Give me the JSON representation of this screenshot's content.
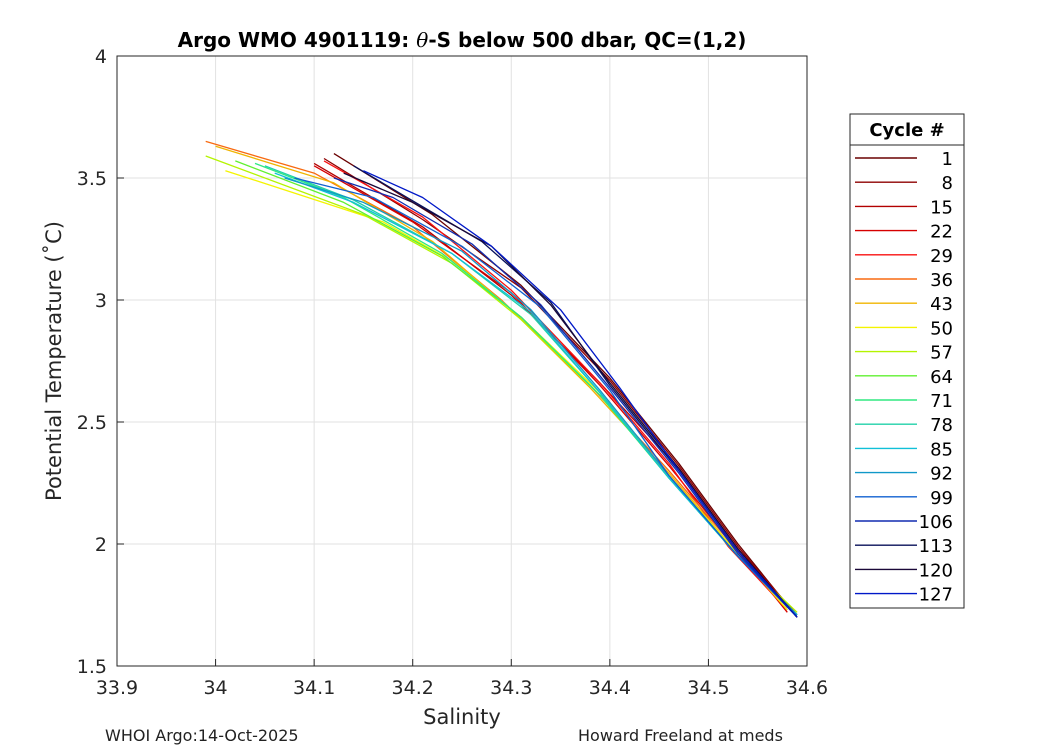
{
  "chart_data": {
    "type": "line",
    "title": "Argo WMO 4901119: θ-S below 500 dbar,  QC=(1,2)",
    "title_prefix": "Argo WMO 4901119: ",
    "title_theta": "θ",
    "title_suffix": "-S below 500 dbar,  QC=(1,2)",
    "xlabel": "Salinity",
    "ylabel": "Potential Temperature (˚C)",
    "xlim": [
      33.9,
      34.6
    ],
    "ylim": [
      1.5,
      4
    ],
    "xticks": [
      "33.9",
      "34",
      "34.1",
      "34.2",
      "34.3",
      "34.4",
      "34.5",
      "34.6"
    ],
    "yticks": [
      "1.5",
      "2",
      "2.5",
      "3",
      "3.5",
      "4"
    ],
    "grid": true,
    "legend_title": "Cycle #",
    "legend_position": "right",
    "legend": [
      {
        "name": "1",
        "color": "#6a0000"
      },
      {
        "name": "8",
        "color": "#8e0000"
      },
      {
        "name": "15",
        "color": "#b20000"
      },
      {
        "name": "22",
        "color": "#d60000"
      },
      {
        "name": "29",
        "color": "#f81010"
      },
      {
        "name": "36",
        "color": "#f86a10"
      },
      {
        "name": "43",
        "color": "#f0b400"
      },
      {
        "name": "50",
        "color": "#f4f400"
      },
      {
        "name": "57",
        "color": "#b4f400"
      },
      {
        "name": "64",
        "color": "#60f030"
      },
      {
        "name": "71",
        "color": "#30e880"
      },
      {
        "name": "78",
        "color": "#20d0a8"
      },
      {
        "name": "85",
        "color": "#10c0d8"
      },
      {
        "name": "92",
        "color": "#1098c8"
      },
      {
        "name": "99",
        "color": "#1060d0"
      },
      {
        "name": "106",
        "color": "#102cb0"
      },
      {
        "name": "113",
        "color": "#08105a"
      },
      {
        "name": "120",
        "color": "#1a0838"
      },
      {
        "name": "127",
        "color": "#0018c8"
      }
    ],
    "series": [
      {
        "color": "#6a0000",
        "x": [
          34.12,
          34.22,
          34.31,
          34.4,
          34.47,
          34.53,
          34.59
        ],
        "y": [
          3.6,
          3.35,
          3.06,
          2.68,
          2.33,
          2.0,
          1.7
        ]
      },
      {
        "color": "#8e0000",
        "x": [
          34.11,
          34.21,
          34.31,
          34.4,
          34.47,
          34.53,
          34.59
        ],
        "y": [
          3.58,
          3.33,
          3.05,
          2.67,
          2.32,
          1.99,
          1.7
        ]
      },
      {
        "color": "#b20000",
        "x": [
          34.1,
          34.21,
          34.3,
          34.39,
          34.47,
          34.53,
          34.59
        ],
        "y": [
          3.56,
          3.3,
          3.02,
          2.66,
          2.31,
          1.98,
          1.71
        ]
      },
      {
        "color": "#d60000",
        "x": [
          34.1,
          34.2,
          34.3,
          34.39,
          34.46,
          34.53,
          34.58
        ],
        "y": [
          3.55,
          3.32,
          3.03,
          2.65,
          2.32,
          1.97,
          1.72
        ]
      },
      {
        "color": "#f81010",
        "x": [
          34.11,
          34.21,
          34.3,
          34.39,
          34.46,
          34.52,
          34.58
        ],
        "y": [
          3.57,
          3.34,
          3.04,
          2.66,
          2.33,
          1.99,
          1.73
        ]
      },
      {
        "color": "#f86a10",
        "x": [
          33.99,
          34.1,
          34.2,
          34.29,
          34.38,
          34.46,
          34.53,
          34.58
        ],
        "y": [
          3.65,
          3.52,
          3.3,
          3.0,
          2.65,
          2.3,
          1.97,
          1.74
        ]
      },
      {
        "color": "#f0b400",
        "x": [
          34.0,
          34.12,
          34.22,
          34.3,
          34.38,
          34.46,
          34.53,
          34.58
        ],
        "y": [
          3.63,
          3.48,
          3.24,
          2.96,
          2.64,
          2.29,
          1.96,
          1.74
        ]
      },
      {
        "color": "#f4f400",
        "x": [
          34.01,
          34.17,
          34.24,
          34.31,
          34.39,
          34.46,
          34.53,
          34.58
        ],
        "y": [
          3.53,
          3.32,
          3.16,
          2.93,
          2.62,
          2.28,
          1.96,
          1.73
        ]
      },
      {
        "color": "#b4f400",
        "x": [
          33.99,
          34.15,
          34.24,
          34.31,
          34.39,
          34.46,
          34.53,
          34.59
        ],
        "y": [
          3.59,
          3.35,
          3.15,
          2.92,
          2.61,
          2.28,
          1.95,
          1.72
        ]
      },
      {
        "color": "#60f030",
        "x": [
          34.02,
          34.13,
          34.23,
          34.31,
          34.39,
          34.46,
          34.53,
          34.59
        ],
        "y": [
          3.57,
          3.4,
          3.18,
          2.93,
          2.61,
          2.27,
          1.95,
          1.71
        ]
      },
      {
        "color": "#30e880",
        "x": [
          34.04,
          34.13,
          34.23,
          34.31,
          34.39,
          34.46,
          34.53,
          34.59
        ],
        "y": [
          3.56,
          3.42,
          3.19,
          2.93,
          2.61,
          2.27,
          1.95,
          1.71
        ]
      },
      {
        "color": "#20d0a8",
        "x": [
          34.05,
          34.14,
          34.24,
          34.32,
          34.39,
          34.46,
          34.53,
          34.59
        ],
        "y": [
          3.55,
          3.41,
          3.19,
          2.94,
          2.62,
          2.27,
          1.95,
          1.71
        ]
      },
      {
        "color": "#10c0d8",
        "x": [
          34.06,
          34.14,
          34.24,
          34.32,
          34.39,
          34.46,
          34.53,
          34.59
        ],
        "y": [
          3.52,
          3.4,
          3.19,
          2.95,
          2.62,
          2.27,
          1.95,
          1.71
        ]
      },
      {
        "color": "#1098c8",
        "x": [
          34.07,
          34.15,
          34.25,
          34.32,
          34.39,
          34.46,
          34.53,
          34.59
        ],
        "y": [
          3.5,
          3.4,
          3.2,
          2.96,
          2.63,
          2.28,
          1.95,
          1.71
        ]
      },
      {
        "color": "#1060d0",
        "x": [
          34.08,
          34.16,
          34.25,
          34.33,
          34.4,
          34.46,
          34.53,
          34.59
        ],
        "y": [
          3.5,
          3.42,
          3.22,
          2.97,
          2.63,
          2.28,
          1.95,
          1.7
        ]
      },
      {
        "color": "#102cb0",
        "x": [
          34.12,
          34.18,
          34.26,
          34.33,
          34.4,
          34.47,
          34.53,
          34.59
        ],
        "y": [
          3.5,
          3.42,
          3.23,
          2.98,
          2.64,
          2.29,
          1.96,
          1.7
        ]
      },
      {
        "color": "#08105a",
        "x": [
          34.14,
          34.19,
          34.27,
          34.34,
          34.4,
          34.47,
          34.53,
          34.59
        ],
        "y": [
          3.55,
          3.43,
          3.24,
          2.99,
          2.65,
          2.3,
          1.97,
          1.7
        ]
      },
      {
        "color": "#1a0838",
        "x": [
          34.13,
          34.2,
          34.28,
          34.34,
          34.4,
          34.47,
          34.53,
          34.59
        ],
        "y": [
          3.52,
          3.4,
          3.22,
          2.98,
          2.66,
          2.31,
          1.98,
          1.7
        ]
      },
      {
        "color": "#0018c8",
        "x": [
          34.15,
          34.21,
          34.28,
          34.35,
          34.41,
          34.47,
          34.53,
          34.59
        ],
        "y": [
          3.53,
          3.42,
          3.22,
          2.96,
          2.64,
          2.3,
          1.97,
          1.7
        ]
      }
    ]
  },
  "footer": {
    "left": "WHOI Argo:14-Oct-2025",
    "right": "Howard Freeland at meds"
  }
}
